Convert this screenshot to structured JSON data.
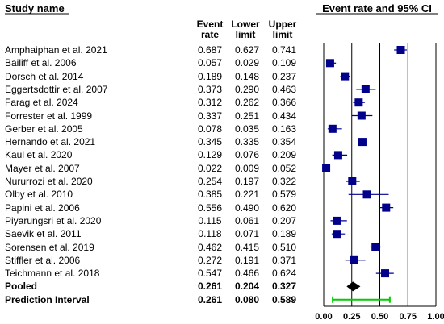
{
  "header": {
    "study_name": "Study name",
    "plot_title": "Event rate and 95% CI"
  },
  "columns": {
    "event_rate": [
      "Event",
      "rate"
    ],
    "lower_limit": [
      "Lower",
      "limit"
    ],
    "upper_limit": [
      "Upper",
      "limit"
    ]
  },
  "chart_data": {
    "type": "forest",
    "title": "Event rate and 95% CI",
    "xlim": [
      0,
      1
    ],
    "xticks": [
      "0.00",
      "0.25",
      "0.50",
      "0.75",
      "1.00"
    ],
    "xtick_values": [
      0,
      0.25,
      0.5,
      0.75,
      1.0
    ],
    "vertical_lines": [
      0,
      0.25,
      0.5,
      0.75,
      1.0
    ],
    "marker_color": "#00008b",
    "prediction_color": "#00cc00",
    "studies": [
      {
        "name": "Amphaiphan et al. 2021",
        "rate": "0.687",
        "lower": "0.627",
        "upper": "0.741"
      },
      {
        "name": "Bailiff et al. 2006",
        "rate": "0.057",
        "lower": "0.029",
        "upper": "0.109"
      },
      {
        "name": "Dorsch et al. 2014",
        "rate": "0.189",
        "lower": "0.148",
        "upper": "0.237"
      },
      {
        "name": "Eggertsdottir et al. 2007",
        "rate": "0.373",
        "lower": "0.290",
        "upper": "0.463"
      },
      {
        "name": "Farag et al. 2024",
        "rate": "0.312",
        "lower": "0.262",
        "upper": "0.366"
      },
      {
        "name": "Forrester et al. 1999",
        "rate": "0.337",
        "lower": "0.251",
        "upper": "0.434"
      },
      {
        "name": "Gerber et al. 2005",
        "rate": "0.078",
        "lower": "0.035",
        "upper": "0.163"
      },
      {
        "name": "Hernando et al. 2021",
        "rate": "0.345",
        "lower": "0.335",
        "upper": "0.354"
      },
      {
        "name": "Kaul et al. 2020",
        "rate": "0.129",
        "lower": "0.076",
        "upper": "0.209"
      },
      {
        "name": "Mayer et al. 2007",
        "rate": "0.022",
        "lower": "0.009",
        "upper": "0.052"
      },
      {
        "name": "Nururrozi et al. 2020",
        "rate": "0.254",
        "lower": "0.197",
        "upper": "0.322"
      },
      {
        "name": "Olby et al. 2010",
        "rate": "0.385",
        "lower": "0.221",
        "upper": "0.579"
      },
      {
        "name": "Papini et al. 2006",
        "rate": "0.556",
        "lower": "0.490",
        "upper": "0.620"
      },
      {
        "name": "Piyarungsri et al. 2020",
        "rate": "0.115",
        "lower": "0.061",
        "upper": "0.207"
      },
      {
        "name": "Saevik et al. 2011",
        "rate": "0.118",
        "lower": "0.071",
        "upper": "0.189"
      },
      {
        "name": "Sorensen et al. 2019",
        "rate": "0.462",
        "lower": "0.415",
        "upper": "0.510"
      },
      {
        "name": "Stiffler et al. 2006",
        "rate": "0.272",
        "lower": "0.191",
        "upper": "0.371"
      },
      {
        "name": "Teichmann et al. 2018",
        "rate": "0.547",
        "lower": "0.466",
        "upper": "0.624"
      }
    ],
    "pooled": {
      "name": "Pooled",
      "rate": "0.261",
      "lower": "0.204",
      "upper": "0.327"
    },
    "prediction_interval": {
      "name": "Prediction Interval",
      "rate": "0.261",
      "lower": "0.080",
      "upper": "0.589"
    }
  }
}
